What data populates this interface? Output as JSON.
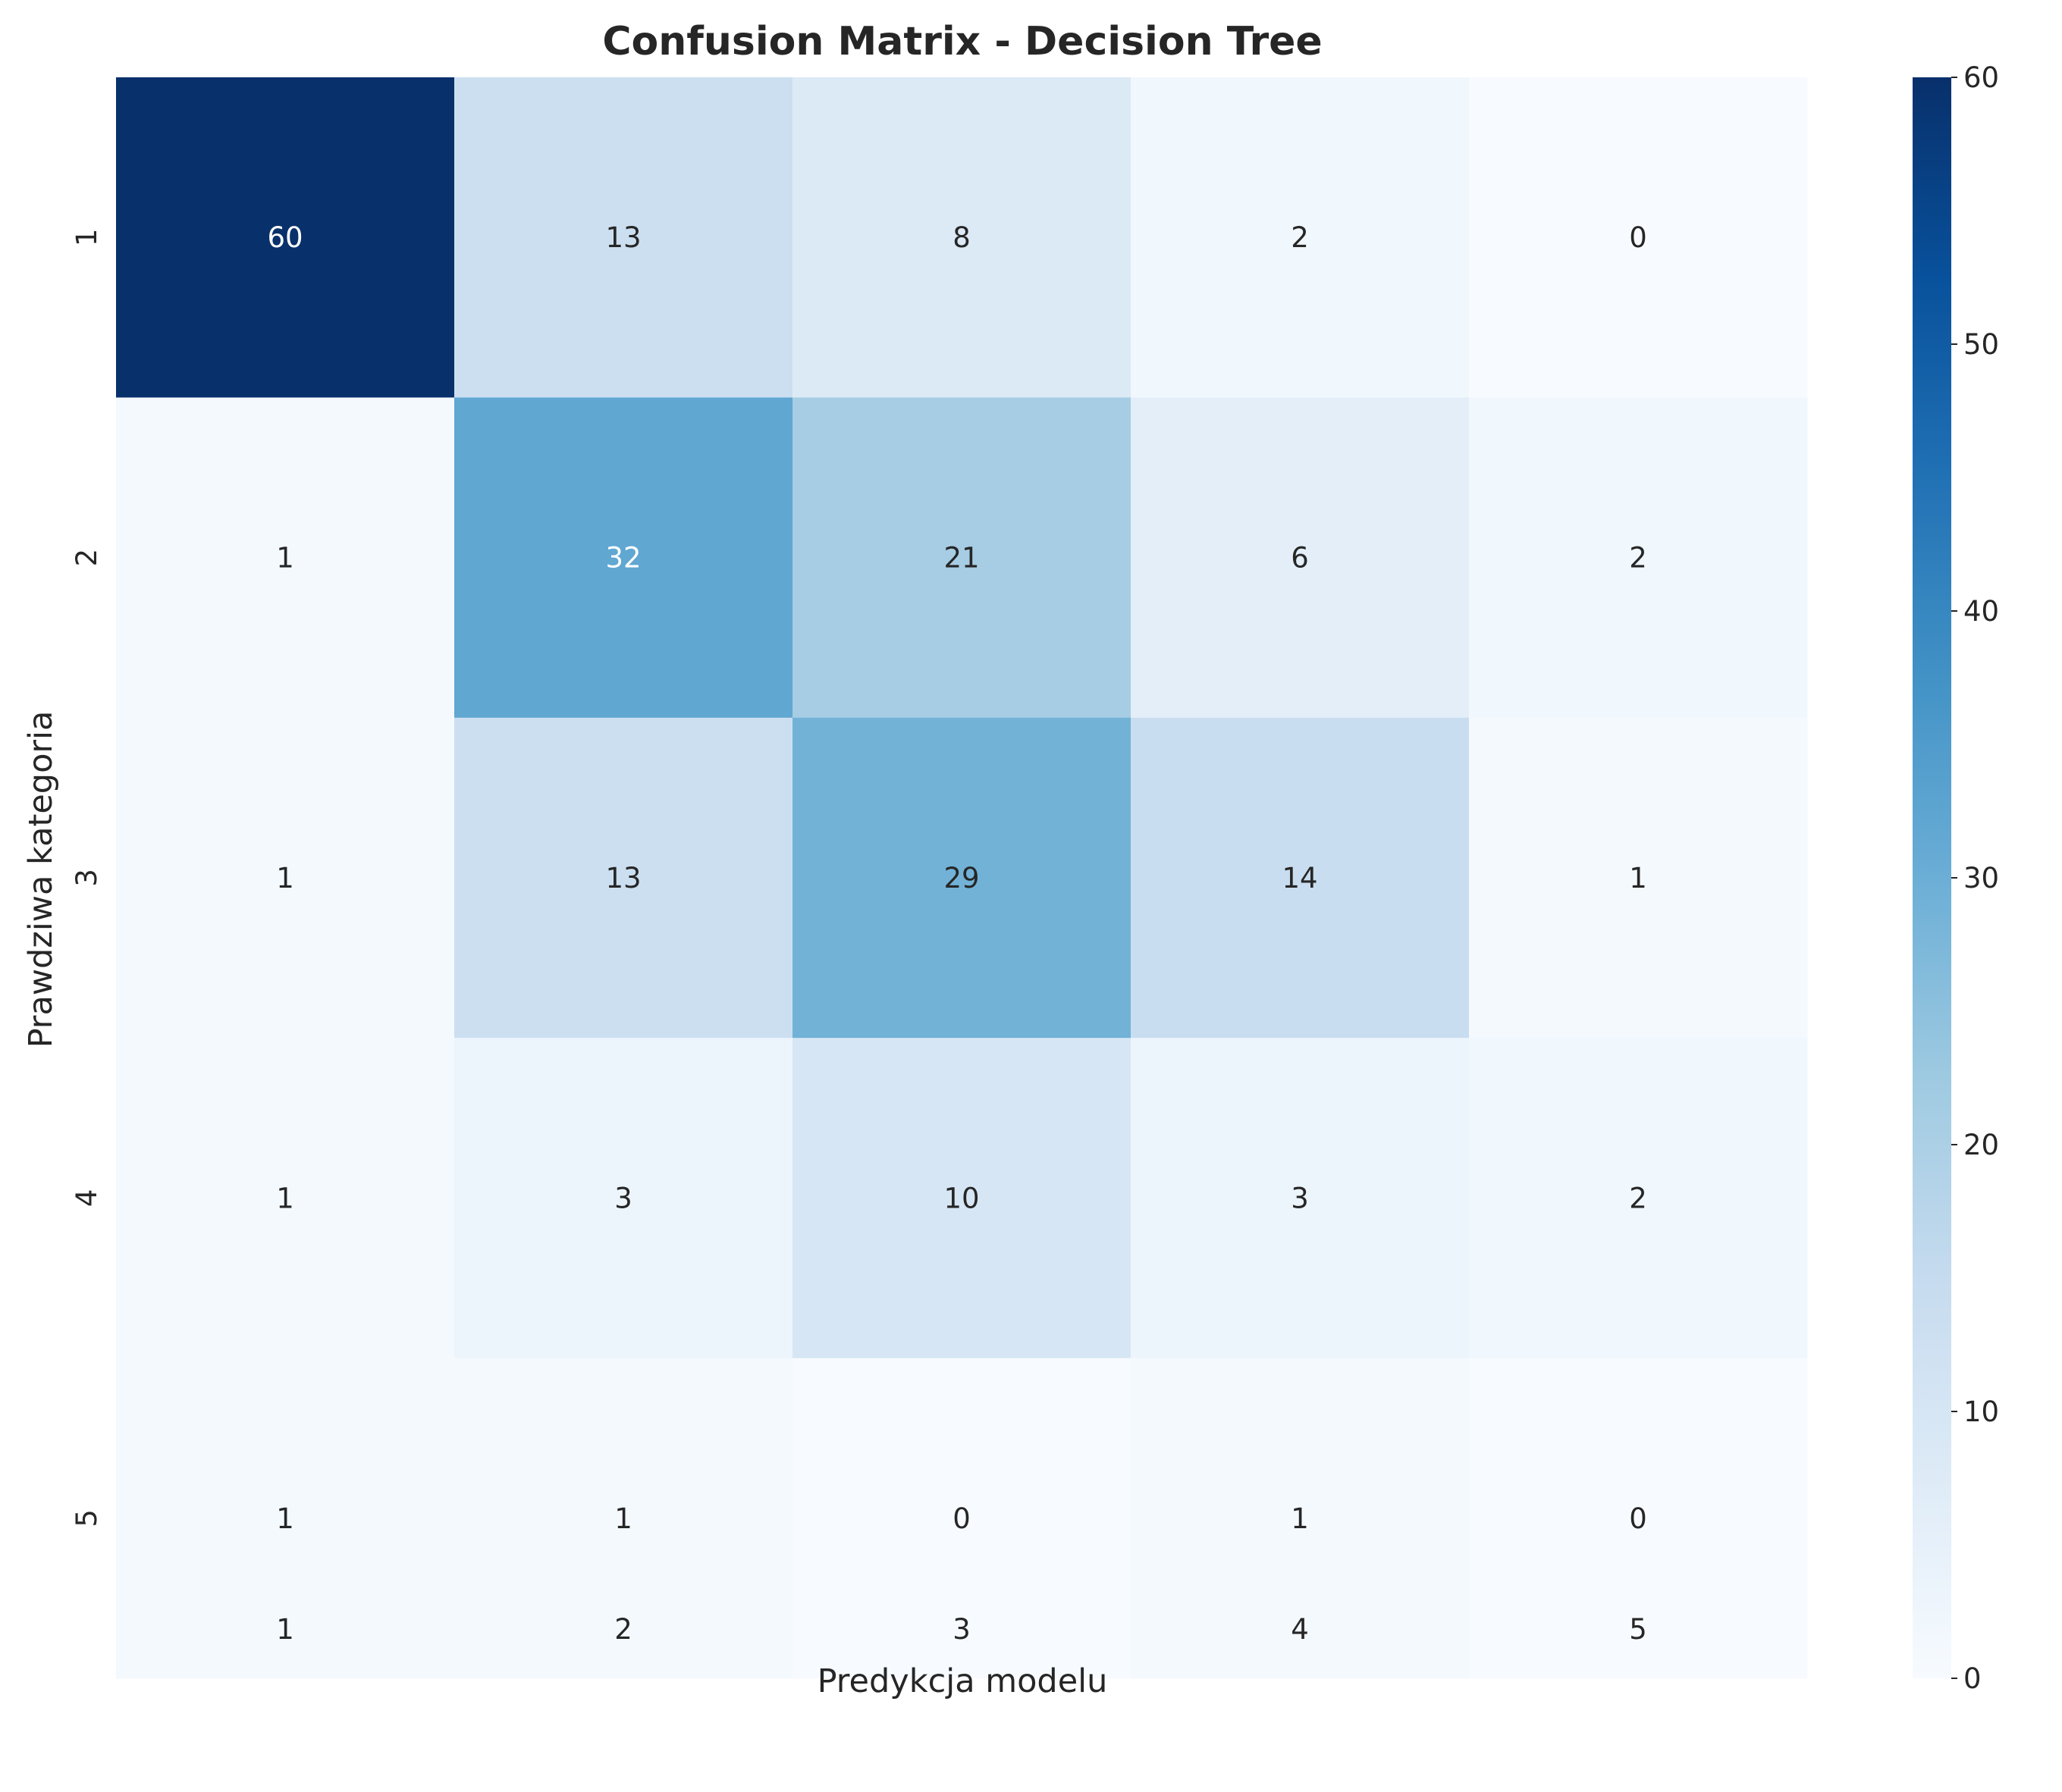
{
  "chart_data": {
    "type": "heatmap",
    "title": "Confusion Matrix - Decision Tree",
    "xlabel": "Predykcja modelu",
    "ylabel": "Prawdziwa kategoria",
    "x_categories": [
      "1",
      "2",
      "3",
      "4",
      "5"
    ],
    "y_categories": [
      "1",
      "2",
      "3",
      "4",
      "5"
    ],
    "values": [
      [
        60,
        13,
        8,
        2,
        0
      ],
      [
        1,
        32,
        21,
        6,
        2
      ],
      [
        1,
        13,
        29,
        14,
        1
      ],
      [
        1,
        3,
        10,
        3,
        2
      ],
      [
        1,
        1,
        0,
        1,
        0
      ]
    ],
    "colormap": "Blues",
    "vmin": 0,
    "vmax": 60,
    "colorbar_ticks": [
      0,
      10,
      20,
      30,
      40,
      50,
      60
    ],
    "colorbar_tick_labels": [
      "0",
      "10",
      "20",
      "30",
      "40",
      "50",
      "60"
    ],
    "annotated": true,
    "grid": false
  }
}
